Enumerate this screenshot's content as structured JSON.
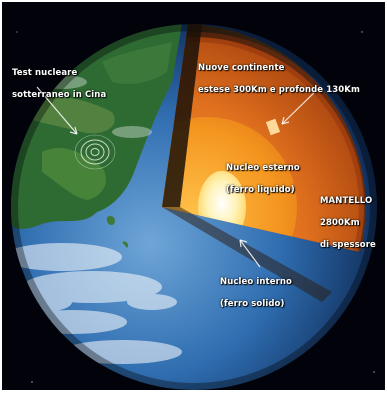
{
  "labels": {
    "nuclear_test": [
      "Test nucleare",
      "sotterraneo in Cina"
    ],
    "new_continents": [
      "Nuove continente",
      "estese 300Km e profonde 130Km"
    ],
    "outer_core": [
      "Nucleo esterno",
      "(ferro liquido)"
    ],
    "mantle": [
      "MANTELLO",
      "2800Km",
      "di spessore"
    ],
    "inner_core": [
      "Nucleo interno",
      "(ferro solido)"
    ]
  },
  "colors": {
    "space": "#02030a",
    "ocean": "#2d6fb3",
    "land": "#2f6a34",
    "crust": "#3a2616",
    "mantle": "#d9651b",
    "outer_core": "#f08a1e",
    "inner_core": "#fff6c8"
  }
}
